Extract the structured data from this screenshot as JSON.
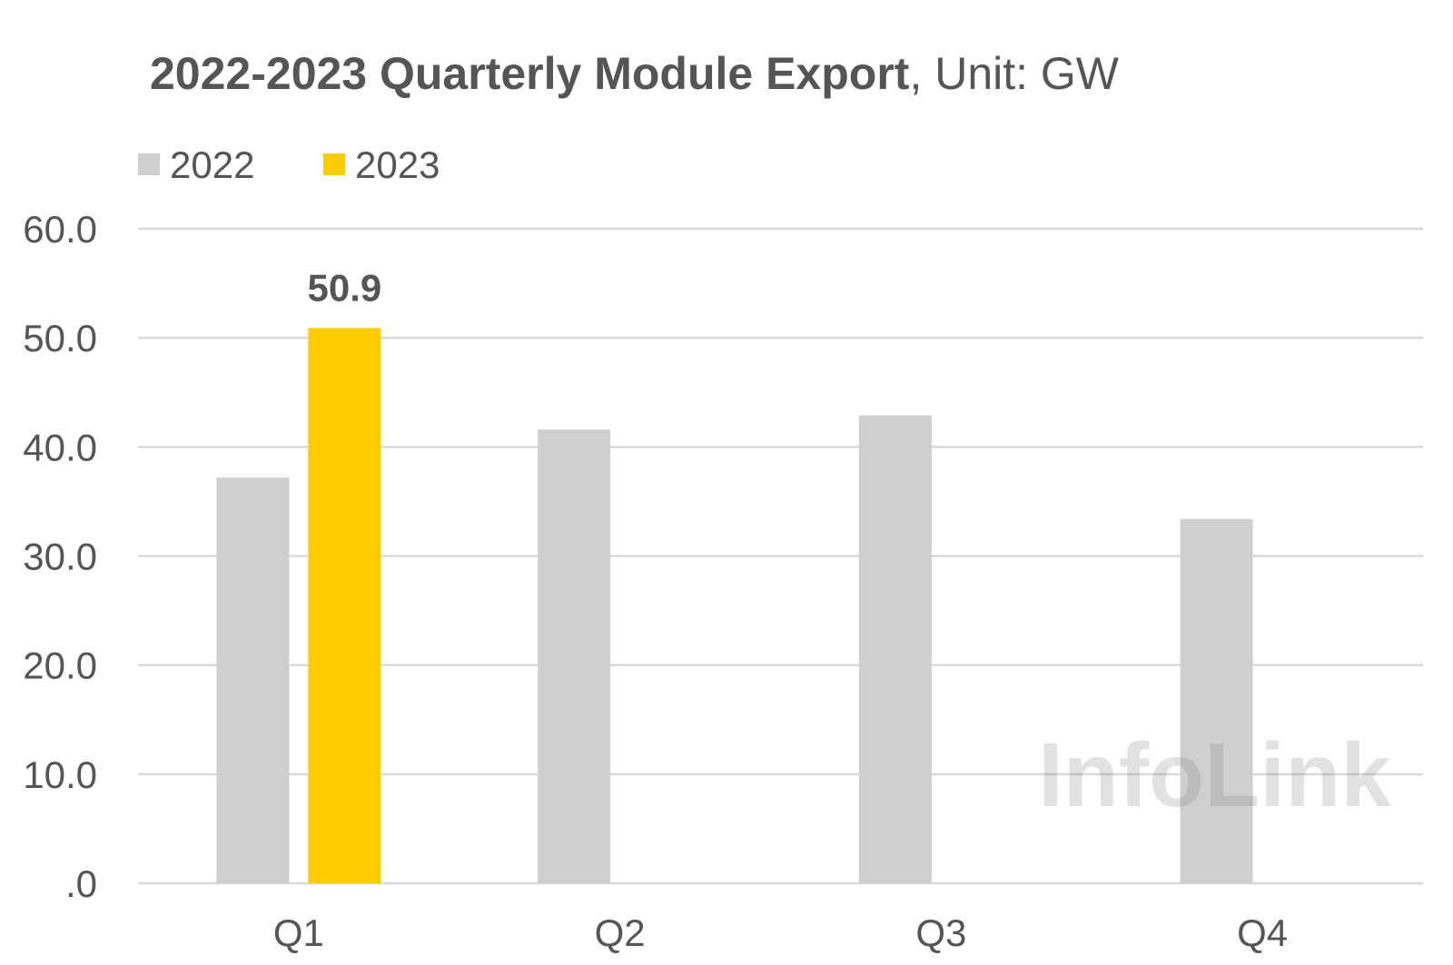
{
  "chart_data": {
    "type": "bar",
    "title": "2022-2023 Quarterly Module Export",
    "title_suffix": ", Unit: GW",
    "categories": [
      "Q1",
      "Q2",
      "Q3",
      "Q4"
    ],
    "series": [
      {
        "name": "2022",
        "color": "#d0cfcf",
        "values": [
          37.2,
          41.6,
          42.9,
          33.4
        ]
      },
      {
        "name": "2023",
        "color": "#ffcc00",
        "values": [
          50.9,
          null,
          null,
          null
        ]
      }
    ],
    "ylim": [
      0,
      60
    ],
    "yticks": [
      0,
      10,
      20,
      30,
      40,
      50,
      60
    ],
    "ytick_labels": [
      ".0",
      "10.0",
      "20.0",
      "30.0",
      "40.0",
      "50.0",
      "60.0"
    ],
    "data_labels": [
      {
        "series": "2023",
        "category": "Q1",
        "text": "50.9"
      }
    ],
    "legend_position": "top-left",
    "grid": true,
    "gridline_color": "#d9d9d9",
    "watermark": "InfoLink"
  }
}
